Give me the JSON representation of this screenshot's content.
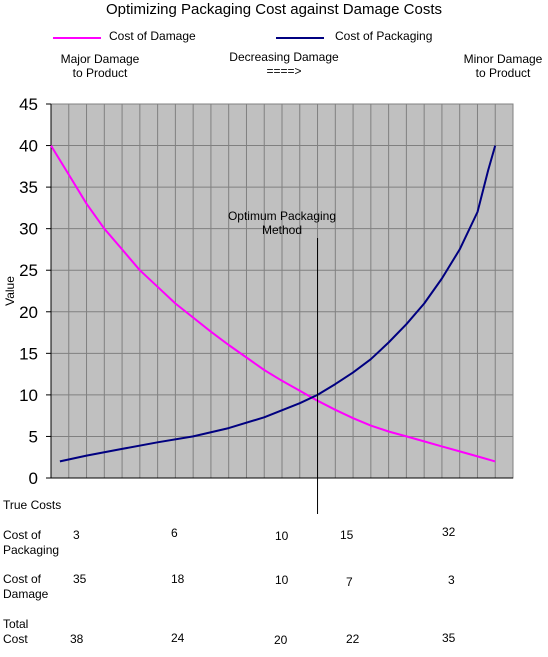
{
  "chart_data": {
    "type": "line",
    "title": "Optimizing Packaging Cost against Damage Costs",
    "xlabel": "",
    "ylabel": "Value",
    "ylim": [
      0,
      45
    ],
    "yticks": [
      0,
      5,
      10,
      15,
      20,
      25,
      30,
      35,
      40,
      45
    ],
    "grid": true,
    "legend_position": "top",
    "series": [
      {
        "name": "Cost of Damage",
        "color": "#ff00ff",
        "points": [
          [
            0,
            40
          ],
          [
            1,
            36.5
          ],
          [
            2,
            33
          ],
          [
            3,
            30
          ],
          [
            4,
            27.5
          ],
          [
            5,
            25
          ],
          [
            6,
            23
          ],
          [
            7,
            21
          ],
          [
            8,
            19.3
          ],
          [
            9,
            17.6
          ],
          [
            10,
            16
          ],
          [
            11,
            14.5
          ],
          [
            12,
            13
          ],
          [
            13,
            11.7
          ],
          [
            14,
            10.5
          ],
          [
            15,
            9.3
          ],
          [
            16,
            8.2
          ],
          [
            17,
            7.2
          ],
          [
            18,
            6.3
          ],
          [
            19,
            5.6
          ],
          [
            20,
            5
          ],
          [
            21,
            4.4
          ],
          [
            22,
            3.8
          ],
          [
            23,
            3.2
          ],
          [
            24,
            2.6
          ],
          [
            25,
            2
          ]
        ]
      },
      {
        "name": "Cost of Packaging",
        "color": "#000080",
        "points": [
          [
            0.5,
            2
          ],
          [
            2,
            2.7
          ],
          [
            4,
            3.5
          ],
          [
            6,
            4.3
          ],
          [
            8,
            5
          ],
          [
            10,
            6
          ],
          [
            12,
            7.3
          ],
          [
            14,
            9
          ],
          [
            15,
            10
          ],
          [
            16,
            11.3
          ],
          [
            17,
            12.7
          ],
          [
            18,
            14.3
          ],
          [
            19,
            16.3
          ],
          [
            20,
            18.5
          ],
          [
            21,
            21
          ],
          [
            22,
            24
          ],
          [
            23,
            27.5
          ],
          [
            24,
            32
          ],
          [
            24.6,
            37
          ],
          [
            25,
            40
          ]
        ]
      }
    ],
    "vertical_line_x": 15
  },
  "annotations": {
    "major_damage": [
      "Major Damage",
      "to Product"
    ],
    "decreasing": [
      "Decreasing Damage",
      "====>"
    ],
    "minor_damage": [
      "Minor Damage",
      "to Product"
    ],
    "optimum": [
      "Optimum Packaging",
      "Method"
    ]
  },
  "table": {
    "heading": "True Costs",
    "rows": [
      {
        "label": [
          "Cost of",
          "Packaging"
        ],
        "values": [
          "3",
          "6",
          "10",
          "15",
          "32"
        ]
      },
      {
        "label": [
          "Cost of",
          "Damage"
        ],
        "values": [
          "35",
          "18",
          "10",
          "7",
          "3"
        ]
      },
      {
        "label": [
          "Total",
          "Cost"
        ],
        "values": [
          "38",
          "24",
          "20",
          "22",
          "35"
        ]
      }
    ]
  }
}
